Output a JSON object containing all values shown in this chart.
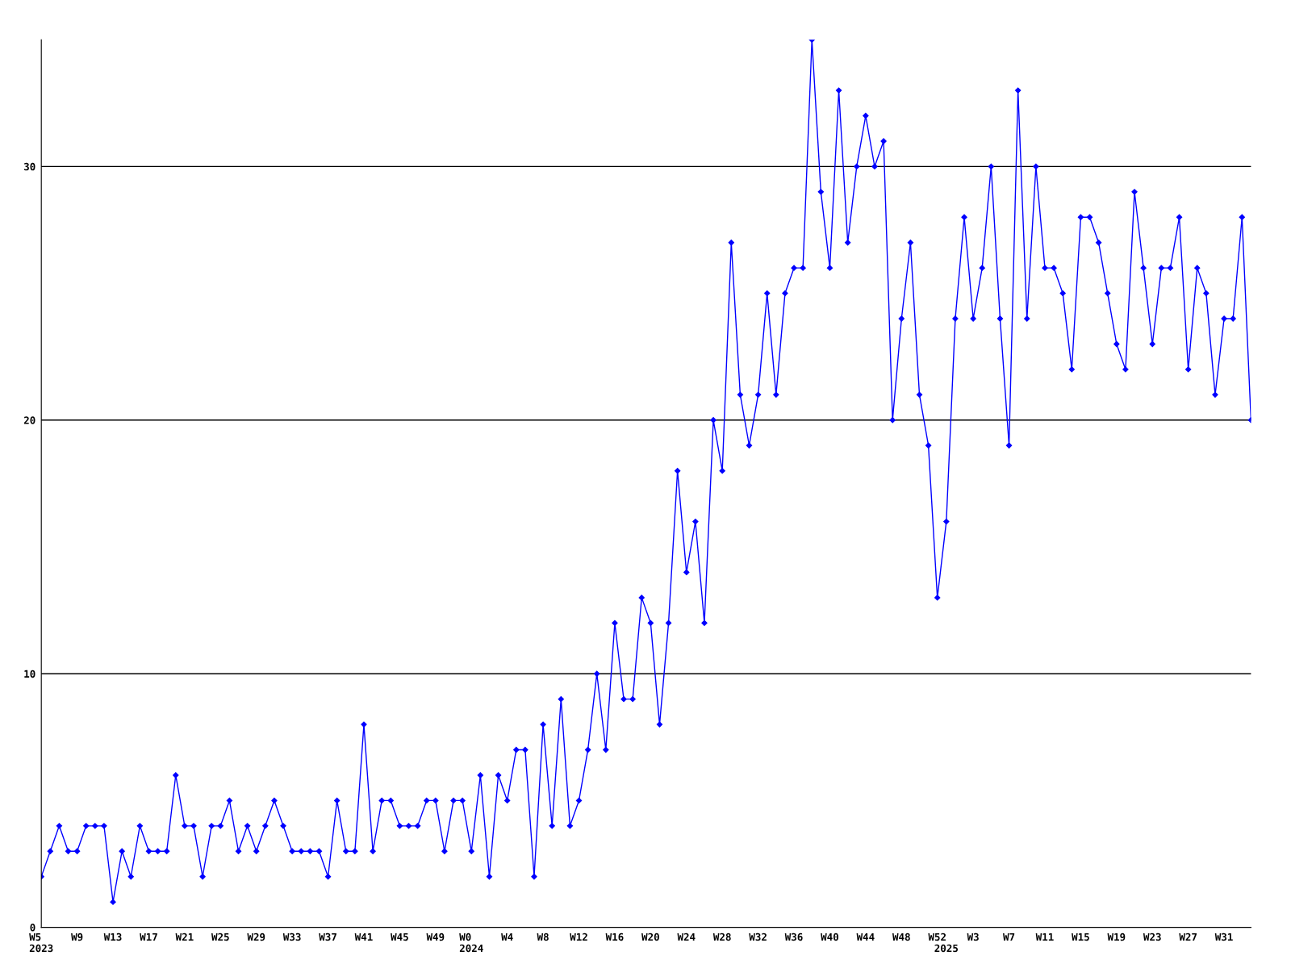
{
  "chart_data": {
    "type": "line",
    "categories": [
      "W5\n2023",
      null,
      null,
      null,
      "W9",
      null,
      null,
      null,
      "W13",
      null,
      null,
      null,
      "W17",
      null,
      null,
      null,
      "W21",
      null,
      null,
      null,
      "W25",
      null,
      null,
      null,
      "W29",
      null,
      null,
      null,
      "W33",
      null,
      null,
      null,
      "W37",
      null,
      null,
      null,
      "W41",
      null,
      null,
      null,
      "W45",
      null,
      null,
      null,
      "W49",
      null,
      null,
      null,
      "W0\n2024",
      null,
      null,
      null,
      "W4",
      null,
      null,
      null,
      "W8",
      null,
      null,
      null,
      "W12",
      null,
      null,
      null,
      "W16",
      null,
      null,
      null,
      "W20",
      null,
      null,
      null,
      "W24",
      null,
      null,
      null,
      "W28",
      null,
      null,
      null,
      "W32",
      null,
      null,
      null,
      "W36",
      null,
      null,
      null,
      "W40",
      null,
      null,
      null,
      "W44",
      null,
      null,
      null,
      "W48",
      null,
      null,
      null,
      "W52",
      "\n2025",
      null,
      null,
      "W3",
      null,
      null,
      null,
      "W7",
      null,
      null,
      null,
      "W11",
      null,
      null,
      null,
      "W15",
      null,
      null,
      null,
      "W19",
      null,
      null,
      null,
      "W23",
      null,
      null,
      null,
      "W27",
      null,
      null,
      null,
      "W31",
      null,
      null,
      null
    ],
    "series": [
      {
        "color": "#0000ff",
        "values": [
          2,
          3,
          4,
          3,
          3,
          4,
          4,
          4,
          1,
          3,
          2,
          4,
          3,
          3,
          3,
          6,
          4,
          4,
          2,
          4,
          4,
          5,
          3,
          4,
          3,
          4,
          5,
          4,
          3,
          3,
          3,
          3,
          2,
          5,
          3,
          3,
          8,
          3,
          5,
          5,
          4,
          4,
          4,
          5,
          5,
          3,
          5,
          5,
          3,
          6,
          2,
          6,
          5,
          7,
          7,
          2,
          8,
          4,
          9,
          4,
          5,
          7,
          10,
          7,
          12,
          9,
          9,
          13,
          12,
          8,
          12,
          18,
          14,
          16,
          12,
          20,
          18,
          27,
          21,
          19,
          21,
          25,
          21,
          25,
          26,
          26,
          35,
          29,
          26,
          33,
          27,
          30,
          32,
          30,
          31,
          20,
          24,
          27,
          21,
          19,
          13,
          16,
          24,
          28,
          24,
          26,
          30,
          24,
          19,
          33,
          24,
          30,
          26,
          26,
          25,
          22,
          28,
          28,
          27,
          25,
          23,
          22,
          29,
          26,
          23,
          26,
          26,
          28,
          22,
          26,
          25,
          21,
          24,
          24,
          28,
          20
        ]
      }
    ],
    "ylim": [
      0,
      35
    ],
    "yticks": [
      0,
      10,
      20,
      30
    ],
    "grid": "y",
    "marker": "diamond",
    "line_style": "solid"
  }
}
